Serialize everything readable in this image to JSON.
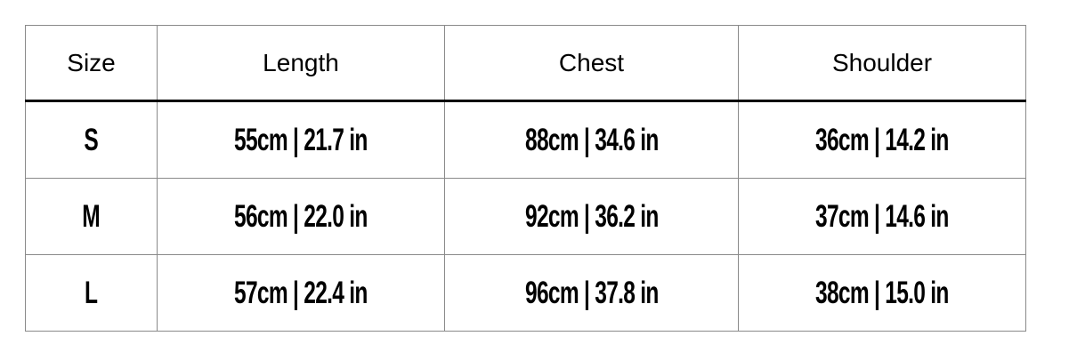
{
  "chart_data": {
    "type": "table",
    "columns": [
      "Size",
      "Length",
      "Chest",
      "Shoulder"
    ],
    "rows": [
      [
        "S",
        "55cm | 21.7 in",
        "88cm | 34.6 in",
        "36cm | 14.2 in"
      ],
      [
        "M",
        "56cm | 22.0 in",
        "92cm | 36.2 in",
        "37cm | 14.6 in"
      ],
      [
        "L",
        "57cm | 22.4 in",
        "96cm | 37.8 in",
        "38cm | 15.0 in"
      ]
    ],
    "layout": {
      "grid": true,
      "header_divider": "thick-black-rule",
      "cell_alignment": "center"
    }
  },
  "colors": {
    "text": "#000000",
    "grid_border": "#8a8a8a",
    "header_rule": "#000000",
    "background": "#ffffff"
  }
}
